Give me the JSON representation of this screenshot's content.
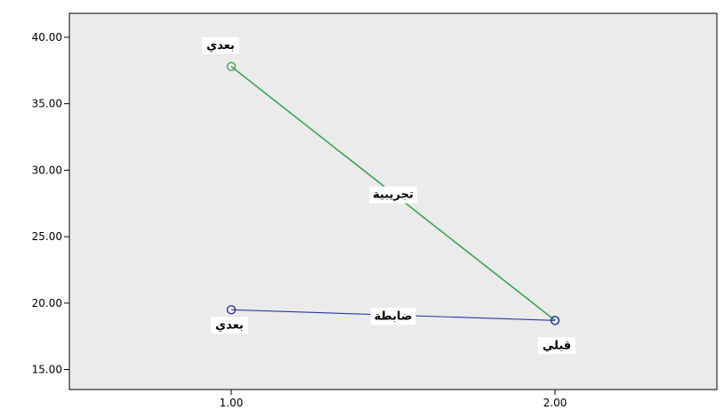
{
  "chart_data": {
    "type": "line",
    "title": "",
    "xlabel": "",
    "ylabel": "",
    "xlim": [
      0.5,
      2.5
    ],
    "ylim": [
      13.5,
      41.8
    ],
    "x_ticks": [
      1.0,
      2.0
    ],
    "x_tick_labels": [
      "1.00",
      "2.00"
    ],
    "y_ticks": [
      15,
      20,
      25,
      30,
      35,
      40
    ],
    "y_tick_labels": [
      "15.00",
      "20.00",
      "25.00",
      "30.00",
      "35.00",
      "40.00"
    ],
    "grid": false,
    "legend": "none",
    "plot_background": "#ebebeb",
    "series": [
      {
        "name": "تجريبية",
        "color": "#3aa653",
        "x": [
          1.0,
          2.0
        ],
        "y": [
          37.8,
          18.7
        ],
        "point_labels": [
          "بعدي",
          "قبلي"
        ]
      },
      {
        "name": "ضابطة",
        "color": "#2b35a6",
        "x": [
          1.0,
          2.0
        ],
        "y": [
          19.5,
          18.7
        ],
        "point_labels": [
          "بعدي",
          ""
        ]
      }
    ]
  }
}
